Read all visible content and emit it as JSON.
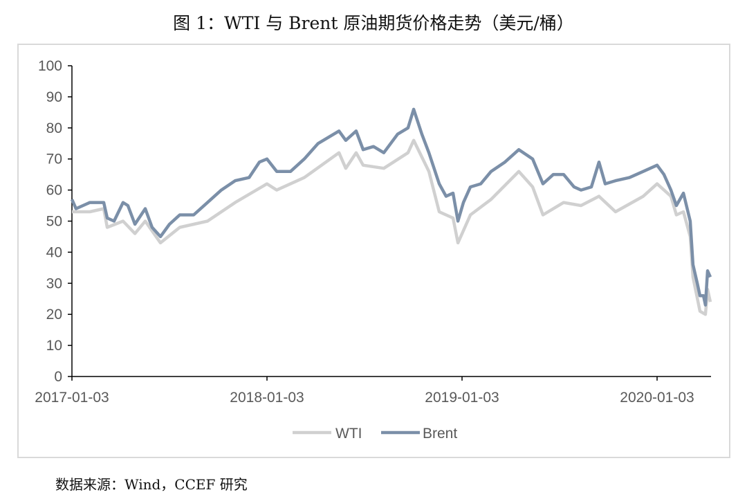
{
  "title": "图 1：WTI 与 Brent 原油期货价格走势（美元/桶）",
  "source": "数据来源：Wind，CCEF 研究",
  "chart_data": {
    "type": "line",
    "title": "图 1：WTI 与 Brent 原油期货价格走势（美元/桶）",
    "xlabel": "",
    "ylabel": "",
    "ylim": [
      0,
      100
    ],
    "xlim": [
      2017.0,
      2020.28
    ],
    "yticks": [
      0,
      10,
      20,
      30,
      40,
      50,
      60,
      70,
      80,
      90,
      100
    ],
    "xticks": [
      {
        "v": 2017.0,
        "label": "2017-01-03"
      },
      {
        "v": 2018.0,
        "label": "2018-01-03"
      },
      {
        "v": 2019.0,
        "label": "2019-01-03"
      },
      {
        "v": 2020.0,
        "label": "2020-01-03"
      }
    ],
    "legend": "bottom",
    "grid": false,
    "series": [
      {
        "name": "WTI",
        "color": "#d0d0d0",
        "x": [
          2017.0,
          2017.092,
          2017.163,
          2017.181,
          2017.262,
          2017.323,
          2017.376,
          2017.454,
          2017.553,
          2017.695,
          2017.837,
          2018.0,
          2018.05,
          2018.191,
          2018.369,
          2018.404,
          2018.457,
          2018.493,
          2018.599,
          2018.723,
          2018.752,
          2018.83,
          2018.883,
          2018.954,
          2018.979,
          2019.043,
          2019.149,
          2019.291,
          2019.362,
          2019.415,
          2019.521,
          2019.61,
          2019.702,
          2019.787,
          2019.929,
          2020.0,
          2020.071,
          2020.099,
          2020.135,
          2020.17,
          2020.184,
          2020.22,
          2020.248,
          2020.259,
          2020.273
        ],
        "values": [
          53,
          53,
          54,
          48,
          50,
          46,
          50,
          43,
          48,
          50,
          56,
          62,
          60,
          64,
          72,
          67,
          72,
          68,
          67,
          72,
          76,
          66,
          53,
          51,
          43,
          52,
          57,
          66,
          61,
          52,
          56,
          55,
          58,
          53,
          58,
          62,
          58,
          52,
          53,
          45,
          32,
          21,
          20,
          28,
          24
        ]
      },
      {
        "name": "Brent",
        "color": "#7b8fa8",
        "x": [
          2017.0,
          2017.021,
          2017.092,
          2017.163,
          2017.181,
          2017.216,
          2017.262,
          2017.287,
          2017.323,
          2017.376,
          2017.411,
          2017.454,
          2017.5,
          2017.553,
          2017.624,
          2017.695,
          2017.766,
          2017.837,
          2017.908,
          2017.961,
          2018.0,
          2018.05,
          2018.121,
          2018.191,
          2018.262,
          2018.369,
          2018.404,
          2018.457,
          2018.493,
          2018.546,
          2018.599,
          2018.67,
          2018.723,
          2018.752,
          2018.794,
          2018.83,
          2018.883,
          2018.918,
          2018.954,
          2018.979,
          2019.007,
          2019.043,
          2019.096,
          2019.149,
          2019.22,
          2019.291,
          2019.362,
          2019.415,
          2019.468,
          2019.521,
          2019.574,
          2019.61,
          2019.663,
          2019.702,
          2019.734,
          2019.787,
          2019.858,
          2019.929,
          2020.0,
          2020.035,
          2020.071,
          2020.099,
          2020.135,
          2020.17,
          2020.184,
          2020.206,
          2020.22,
          2020.238,
          2020.248,
          2020.259,
          2020.273
        ],
        "values": [
          57,
          54,
          56,
          56,
          51,
          50,
          56,
          55,
          49,
          54,
          48,
          45,
          49,
          52,
          52,
          56,
          60,
          63,
          64,
          69,
          70,
          66,
          66,
          70,
          75,
          79,
          76,
          79,
          73,
          74,
          72,
          78,
          80,
          86,
          78,
          72,
          62,
          58,
          59,
          50,
          56,
          61,
          62,
          66,
          69,
          73,
          70,
          62,
          65,
          65,
          61,
          60,
          61,
          69,
          62,
          63,
          64,
          66,
          68,
          65,
          60,
          55,
          59,
          50,
          36,
          30,
          26,
          26,
          23,
          34,
          32
        ]
      }
    ]
  }
}
